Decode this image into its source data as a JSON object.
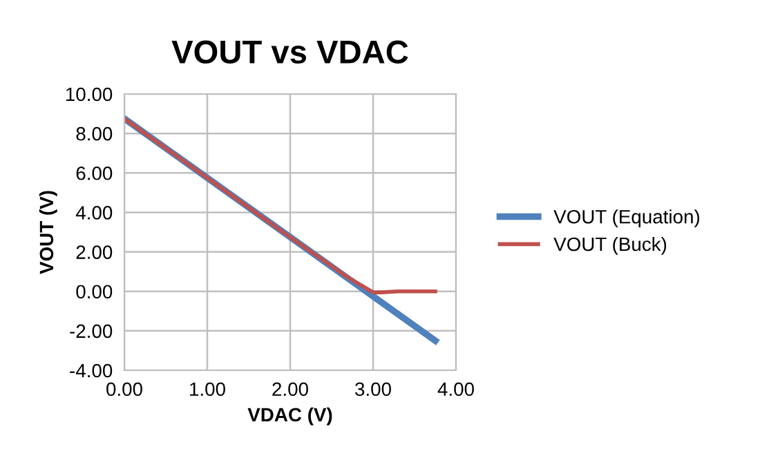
{
  "chart_data": {
    "type": "line",
    "title": "VOUT vs VDAC",
    "xlabel": "VDAC (V)",
    "ylabel": "VOUT (V)",
    "series": [
      {
        "name": "VOUT (Equation)",
        "color": "#4f81bd",
        "x": [
          0,
          1,
          2,
          3,
          3.75
        ],
        "values": [
          8.75,
          5.75,
          2.75,
          -0.25,
          -2.5
        ]
      },
      {
        "name": "VOUT (Buck)",
        "color": "#c0504d",
        "x": [
          0,
          1,
          2,
          2.7,
          2.8,
          2.9,
          3.0,
          3.1,
          3.3,
          3.75
        ],
        "values": [
          8.75,
          5.75,
          2.75,
          0.7,
          0.45,
          0.2,
          -0.05,
          -0.05,
          0,
          0
        ]
      }
    ],
    "xlim": [
      0,
      4
    ],
    "xticks": [
      {
        "value": 0,
        "label": "0.00"
      },
      {
        "value": 1,
        "label": "1.00"
      },
      {
        "value": 2,
        "label": "2.00"
      },
      {
        "value": 3,
        "label": "3.00"
      },
      {
        "value": 4,
        "label": "4.00"
      }
    ],
    "ylim": [
      -4,
      10
    ],
    "yticks": [
      {
        "value": -4,
        "label": "-4.00"
      },
      {
        "value": -2,
        "label": "-2.00"
      },
      {
        "value": 0,
        "label": "0.00"
      },
      {
        "value": 2,
        "label": "2.00"
      },
      {
        "value": 4,
        "label": "4.00"
      },
      {
        "value": 6,
        "label": "6.00"
      },
      {
        "value": 8,
        "label": "8.00"
      },
      {
        "value": 10,
        "label": "10.00"
      }
    ],
    "grid": true,
    "legend": "right",
    "marker": "none",
    "line_style": "solid"
  }
}
